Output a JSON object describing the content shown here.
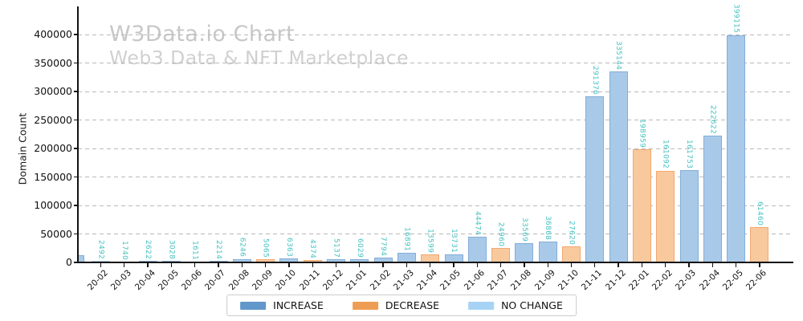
{
  "watermark": {
    "title": "W3Data.io Chart",
    "subtitle": "Web3 Data & NFT Marketplace"
  },
  "chart_data": {
    "type": "bar",
    "title": "W3Data.io Chart",
    "subtitle": "Web3 Data & NFT Marketplace",
    "xlabel": "",
    "ylabel": "Domain Count",
    "ylim": [
      0,
      400000
    ],
    "yticks": [
      0,
      50000,
      100000,
      150000,
      200000,
      250000,
      300000,
      350000,
      400000
    ],
    "grid": "horizontal dashed gridlines",
    "legend_position": "bottom-center",
    "bar_value_labels": "teal, rotated vertical above each bar",
    "categories": [
      "20-02",
      "20-03",
      "20-04",
      "20-05",
      "20-06",
      "20-07",
      "20-08",
      "20-09",
      "20-10",
      "20-11",
      "20-12",
      "21-01",
      "21-02",
      "21-03",
      "21-04",
      "21-05",
      "21-06",
      "21-07",
      "21-08",
      "21-09",
      "21-10",
      "21-11",
      "21-12",
      "22-01",
      "22-02",
      "22-03",
      "22-04",
      "22-05",
      "22-06"
    ],
    "values": [
      2492,
      1740,
      2622,
      3028,
      1611,
      2214,
      6246,
      5065,
      6363,
      4374,
      5137,
      6029,
      7794,
      16891,
      13599,
      13731,
      44474,
      24960,
      33569,
      36868,
      27620,
      291376,
      335144,
      198959,
      161092,
      161753,
      222622,
      399115,
      61460
    ],
    "changes": [
      "no_change",
      "decrease",
      "increase",
      "increase",
      "decrease",
      "increase",
      "increase",
      "decrease",
      "increase",
      "decrease",
      "increase",
      "increase",
      "increase",
      "increase",
      "decrease",
      "increase",
      "increase",
      "decrease",
      "increase",
      "increase",
      "decrease",
      "increase",
      "increase",
      "decrease",
      "decrease",
      "increase",
      "increase",
      "increase",
      "decrease"
    ],
    "left_edge_partial_bar": {
      "series": "increase",
      "estimated_value": 12700
    },
    "legend": [
      {
        "label": "INCREASE",
        "key": "increase"
      },
      {
        "label": "DECREASE",
        "key": "decrease"
      },
      {
        "label": "NO CHANGE",
        "key": "no_change"
      }
    ]
  },
  "colors": {
    "increase_fill": "#a8c9e8",
    "increase_edge": "#84aed9",
    "decrease_fill": "#f9c99e",
    "decrease_edge": "#f2a86f",
    "no_change_fill": "#cae3f7",
    "no_change_edge": "#a9d4f3",
    "legend_increase": "#6197ca",
    "legend_decrease": "#ee9d54",
    "legend_no_change": "#a6d3f5",
    "value_label": "#46c2c2",
    "grid": "#b9b9b9",
    "axis": "#111111",
    "watermark_title": "#c7c7c7",
    "watermark_subtitle": "#d0d0d0"
  }
}
